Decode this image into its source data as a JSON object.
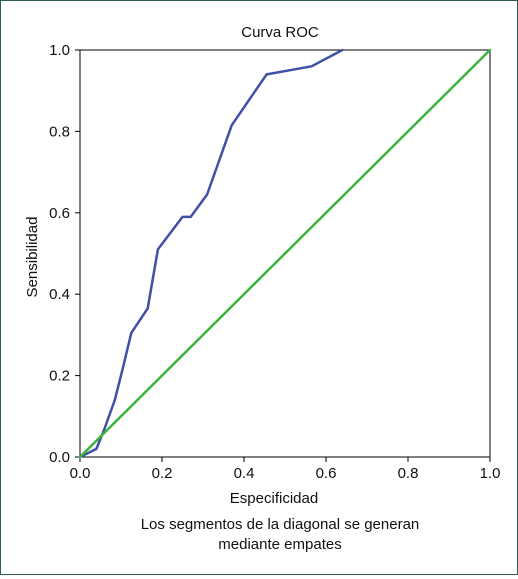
{
  "chart_data": {
    "type": "line",
    "title": "Curva ROC",
    "xlabel": "Especificidad",
    "ylabel": "Sensibilidad",
    "xlim": [
      0.0,
      1.0
    ],
    "ylim": [
      0.0,
      1.0
    ],
    "x_ticks": [
      "0.0",
      "0.2",
      "0.4",
      "0.6",
      "0.8",
      "1.0"
    ],
    "y_ticks": [
      "0.0",
      "0.2",
      "0.4",
      "0.6",
      "0.8",
      "1.0"
    ],
    "grid": false,
    "note_lines": [
      "Los segmentos de la diagonal se generan",
      "mediante empates"
    ],
    "series": [
      {
        "color": "#3f51a5",
        "points": [
          [
            0.0,
            0.0
          ],
          [
            0.04,
            0.02
          ],
          [
            0.06,
            0.07
          ],
          [
            0.085,
            0.14
          ],
          [
            0.105,
            0.22
          ],
          [
            0.125,
            0.305
          ],
          [
            0.165,
            0.365
          ],
          [
            0.19,
            0.51
          ],
          [
            0.25,
            0.59
          ],
          [
            0.27,
            0.59
          ],
          [
            0.31,
            0.645
          ],
          [
            0.37,
            0.815
          ],
          [
            0.455,
            0.94
          ],
          [
            0.565,
            0.96
          ],
          [
            0.64,
            1.0
          ]
        ]
      },
      {
        "color": "#3cb33c",
        "points": [
          [
            0.0,
            0.0
          ],
          [
            1.0,
            1.0
          ]
        ]
      }
    ]
  }
}
